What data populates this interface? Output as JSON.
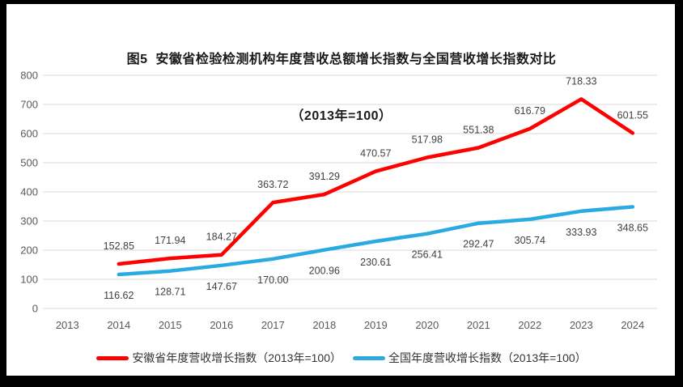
{
  "frame": {
    "border_color": "#000000",
    "background": "#ffffff"
  },
  "title": {
    "line1": "图5  安徽省检验检测机构年度营收总额增长指数与全国营收增长指数对比",
    "line2": "（2013年=100）"
  },
  "chart_data": {
    "type": "line",
    "categories": [
      "2013",
      "2014",
      "2015",
      "2016",
      "2017",
      "2018",
      "2019",
      "2020",
      "2021",
      "2022",
      "2023",
      "2024"
    ],
    "series": [
      {
        "name": "安徽省年度营收增长指数（2013年=100）",
        "color": "#FF0000",
        "label_side": "above",
        "values": [
          null,
          152.85,
          171.94,
          184.27,
          363.72,
          391.29,
          470.57,
          517.98,
          551.38,
          616.79,
          718.33,
          601.55
        ]
      },
      {
        "name": "全国年度营收增长指数（2013年=100）",
        "color": "#29ABE2",
        "label_side": "below",
        "values": [
          null,
          116.62,
          128.71,
          147.67,
          170.0,
          200.96,
          230.61,
          256.41,
          292.47,
          305.74,
          333.93,
          348.65
        ]
      }
    ],
    "ylim": [
      0,
      800
    ],
    "y_step": 100,
    "grid": true,
    "legend_position": "bottom",
    "colors": {
      "gridline": "#D9D9D9",
      "axis_text": "#595959",
      "data_label": "#404040"
    }
  }
}
